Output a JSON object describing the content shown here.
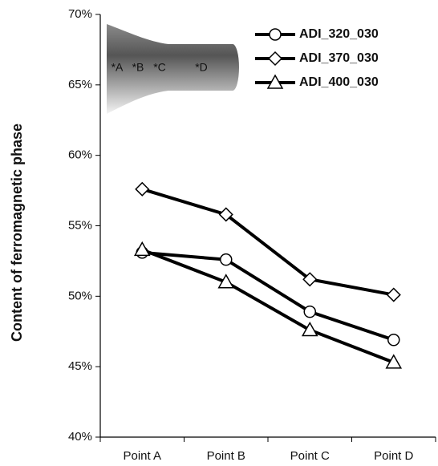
{
  "chart_data": {
    "type": "line",
    "y_label": "Content of ferromagnetic phase",
    "categories": [
      "Point A",
      "Point B",
      "Point C",
      "Point D"
    ],
    "series": [
      {
        "name": "ADI_320_030",
        "color": "#000000",
        "marker": "circle",
        "values": [
          53.1,
          52.6,
          48.9,
          46.9
        ]
      },
      {
        "name": "ADI_370_030",
        "color": "#000000",
        "marker": "diamond",
        "values": [
          57.6,
          55.8,
          51.2,
          50.1
        ]
      },
      {
        "name": "ADI_400_030",
        "color": "#000000",
        "marker": "triangle",
        "values": [
          53.3,
          51.0,
          47.6,
          45.3
        ]
      }
    ],
    "ylim": [
      40,
      70
    ],
    "yticks": [
      {
        "value": 40,
        "label": "40%"
      },
      {
        "value": 45,
        "label": "45%"
      },
      {
        "value": 50,
        "label": "50%"
      },
      {
        "value": 55,
        "label": "55%"
      },
      {
        "value": 60,
        "label": "60%"
      },
      {
        "value": 65,
        "label": "65%"
      },
      {
        "value": 70,
        "label": "70%"
      }
    ],
    "grid": false,
    "legend": "upper right",
    "inset_labels": [
      "*A",
      "*B",
      "*C",
      "*D"
    ]
  }
}
